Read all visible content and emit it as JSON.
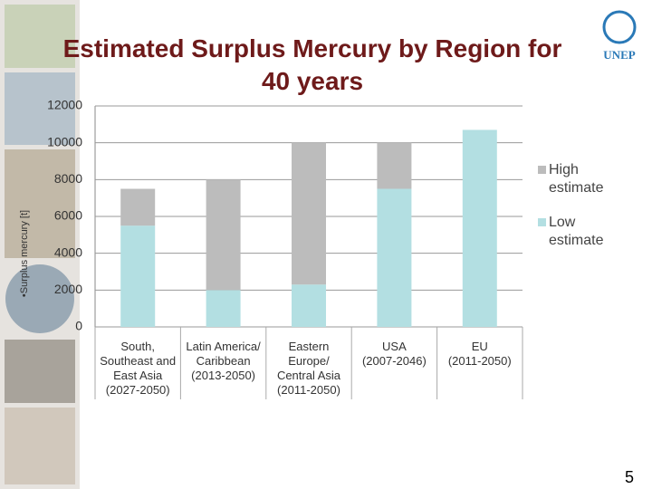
{
  "chart_data": {
    "type": "stacked_bar",
    "title": "Estimated Surplus Mercury by Region for\n40 years",
    "y_label": "•Surplus mercury [t]",
    "categories": [
      "South,\nSoutheast and\nEast Asia\n(2027-2050)",
      "Latin America/\nCaribbean\n(2013-2050)",
      "Eastern\nEurope/\nCentral Asia\n(2011-2050)",
      "USA\n(2007-2046)",
      "EU\n(2011-2050)"
    ],
    "series": [
      {
        "name": "Low\nestimate",
        "color": "#b3dfe2",
        "values": [
          5500,
          2000,
          2300,
          7500,
          10700
        ]
      },
      {
        "name": "High\nestimate",
        "color": "#bcbcbc",
        "values": [
          2000,
          6000,
          7700,
          2500,
          0
        ]
      }
    ],
    "ylim": [
      0,
      12000
    ],
    "yticks": [
      0,
      2000,
      4000,
      6000,
      8000,
      10000,
      12000
    ],
    "grid": true,
    "legend": "right",
    "logo": "UNEP",
    "page_number": "5"
  }
}
